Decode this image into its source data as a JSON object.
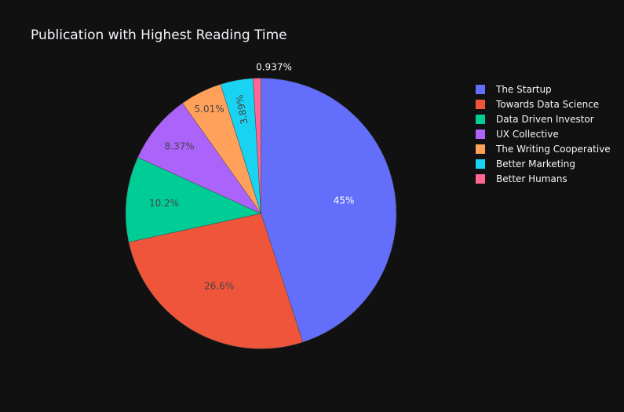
{
  "chart_data": {
    "type": "pie",
    "title": "Publication with Highest Reading Time",
    "categories": [
      "The Startup",
      "Towards Data Science",
      "Data Driven Investor",
      "UX Collective",
      "The Writing Cooperative",
      "Better Marketing",
      "Better Humans"
    ],
    "values": [
      45,
      26.6,
      10.2,
      8.37,
      5.01,
      3.89,
      0.937
    ],
    "labels": [
      "45%",
      "26.6%",
      "10.2%",
      "8.37%",
      "5.01%",
      "3.89%",
      "0.937%"
    ],
    "colors": [
      "#636efa",
      "#EF553B",
      "#00cc96",
      "#ab63fa",
      "#FFA15A",
      "#19d3f3",
      "#FF6692"
    ],
    "legend_position": "top-right",
    "direction": "clockwise",
    "start": "top"
  }
}
